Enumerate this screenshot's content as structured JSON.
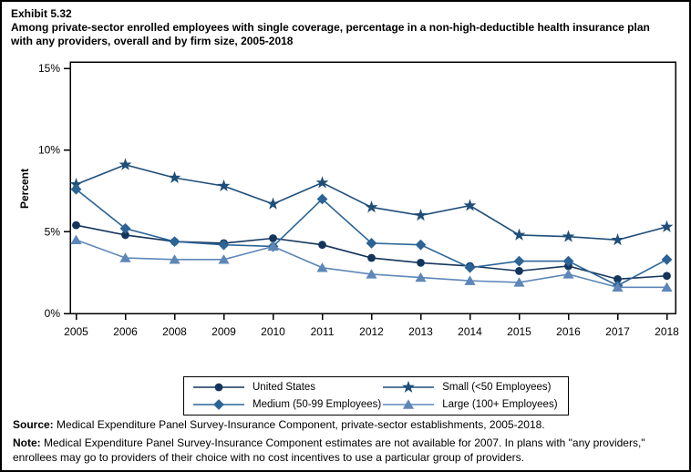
{
  "header": {
    "exhibit_label": "Exhibit 5.32",
    "subtitle": "Among private-sector enrolled employees with single coverage, percentage in a non-high-deductible health insurance plan with any providers, overall and by firm size, 2005-2018"
  },
  "chart_data": {
    "type": "line",
    "title": "Exhibit 5.32",
    "xlabel": "",
    "ylabel": "Percent",
    "ylim": [
      0,
      15
    ],
    "yticks": [
      0,
      5,
      10,
      15
    ],
    "ytick_labels": [
      "0%",
      "5%",
      "10%",
      "15%"
    ],
    "grid": false,
    "legend_position": "bottom",
    "categories": [
      "2005",
      "2006",
      "2008",
      "2009",
      "2010",
      "2011",
      "2012",
      "2013",
      "2014",
      "2015",
      "2016",
      "2017",
      "2018"
    ],
    "series": [
      {
        "name": "United States",
        "marker": "circle",
        "color": "#14355C",
        "values": [
          5.4,
          4.8,
          4.4,
          4.3,
          4.6,
          4.2,
          3.4,
          3.1,
          2.9,
          2.6,
          2.9,
          2.1,
          2.3
        ]
      },
      {
        "name": "Small (<50 Employees)",
        "marker": "star",
        "color": "#1F4E79",
        "values": [
          7.9,
          9.1,
          8.3,
          7.8,
          6.7,
          8.0,
          6.5,
          6.0,
          6.6,
          4.8,
          4.7,
          4.5,
          5.3
        ]
      },
      {
        "name": "Medium (50-99 Employees)",
        "marker": "diamond",
        "color": "#2C6496",
        "values": [
          7.6,
          5.2,
          4.4,
          4.2,
          4.1,
          7.0,
          4.3,
          4.2,
          2.8,
          3.2,
          3.2,
          1.7,
          3.3
        ]
      },
      {
        "name": "Large (100+ Employees)",
        "marker": "triangle",
        "color": "#5E87B8",
        "values": [
          4.5,
          3.4,
          3.3,
          3.3,
          4.1,
          2.8,
          2.4,
          2.2,
          2.0,
          1.9,
          2.4,
          1.6,
          1.6
        ]
      }
    ]
  },
  "legend": {
    "order": [
      0,
      1,
      2,
      3
    ]
  },
  "footer": {
    "source_label": "Source:",
    "source_text": " Medical Expenditure Panel Survey-Insurance Component, private-sector establishments, 2005-2018.",
    "note_label": "Note:",
    "note_text": " Medical Expenditure Panel Survey-Insurance Component estimates are not available for 2007. In plans with \"any providers,\" enrollees may go to providers of their choice with no cost incentives to use a particular group of providers."
  }
}
